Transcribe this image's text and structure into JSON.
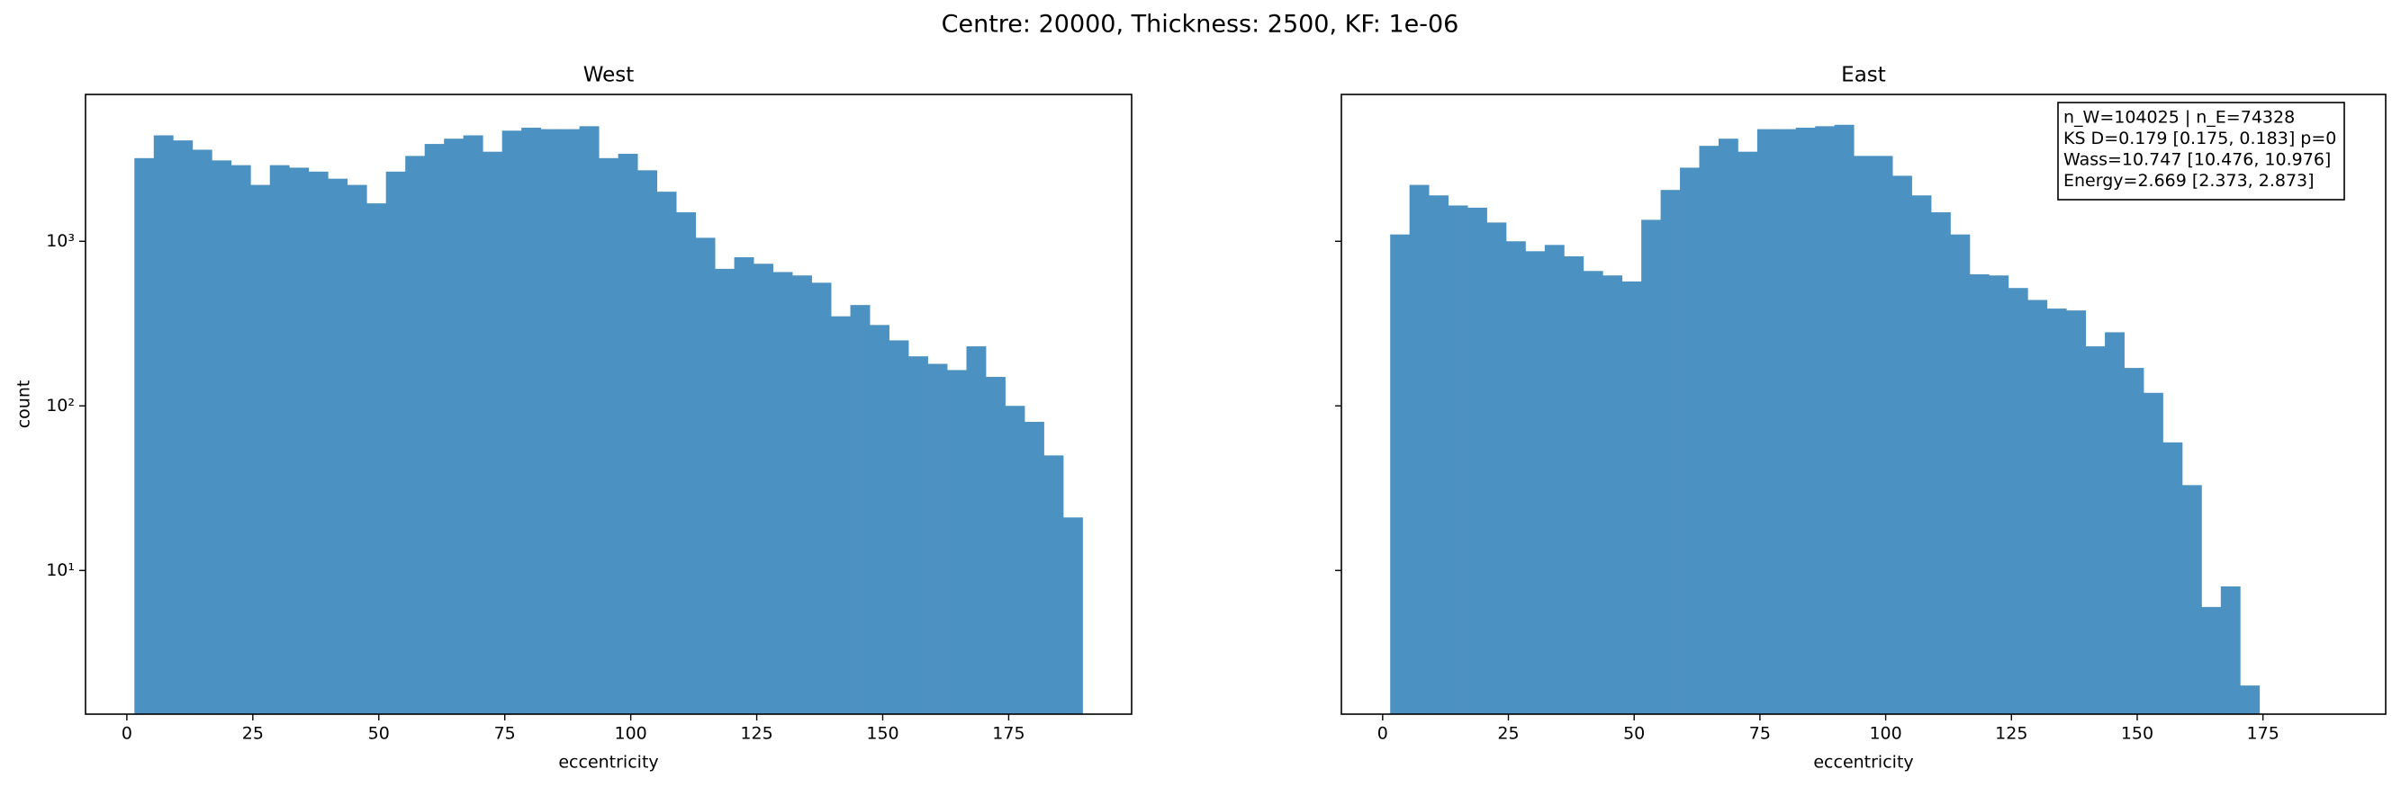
{
  "title": "Centre: 20000, Thickness: 2500, KF: 1e-06",
  "chart_data": [
    {
      "type": "histogram",
      "title": "West",
      "xlabel": "eccentricity",
      "ylabel": "count",
      "color": "#4b91c2",
      "bins": [
        1.5,
        5.34,
        9.18,
        13.02,
        16.86,
        20.7,
        24.54,
        28.38,
        32.22,
        36.06,
        39.9,
        43.74,
        47.58,
        51.42,
        55.26,
        59.1,
        62.94,
        66.78,
        70.62,
        74.46,
        78.3,
        82.14,
        85.98,
        89.82,
        93.66,
        97.5,
        101.34,
        105.18,
        109.02,
        112.86,
        116.7,
        120.54,
        124.38,
        128.22,
        132.06,
        135.9,
        139.74,
        143.58,
        147.42,
        151.26,
        155.1,
        158.94,
        162.78,
        166.62,
        170.46,
        174.3,
        178.14,
        181.98,
        185.82,
        189.66
      ],
      "values": [
        3200,
        4400,
        4100,
        3600,
        3100,
        2900,
        2200,
        2900,
        2800,
        2650,
        2400,
        2200,
        1700,
        2650,
        3300,
        3900,
        4200,
        4400,
        3500,
        4700,
        4900,
        4800,
        4800,
        5000,
        3200,
        3400,
        2700,
        2000,
        1500,
        1050,
        680,
        800,
        730,
        650,
        620,
        560,
        350,
        410,
        310,
        250,
        200,
        180,
        165,
        230,
        150,
        100,
        80,
        50,
        21
      ],
      "xlim": [
        -8.2,
        199.4
      ],
      "xticks": [
        0,
        25,
        50,
        75,
        100,
        125,
        150,
        175
      ],
      "ylim": [
        1.34,
        7800
      ],
      "log_y": true,
      "show_ytick_labels": true,
      "yticks": [
        {
          "value": 10,
          "label": "10¹"
        },
        {
          "value": 100,
          "label": "10²"
        },
        {
          "value": 1000,
          "label": "10³"
        }
      ]
    },
    {
      "type": "histogram",
      "title": "East",
      "xlabel": "eccentricity",
      "color": "#4b91c2",
      "bins": [
        1.5,
        5.34,
        9.18,
        13.02,
        16.86,
        20.7,
        24.54,
        28.38,
        32.22,
        36.06,
        39.9,
        43.74,
        47.58,
        51.42,
        55.26,
        59.1,
        62.94,
        66.78,
        70.62,
        74.46,
        78.3,
        82.14,
        85.98,
        89.82,
        93.66,
        97.5,
        101.34,
        105.18,
        109.02,
        112.86,
        116.7,
        120.54,
        124.38,
        128.22,
        132.06,
        135.9,
        139.74,
        143.58,
        147.42,
        151.26,
        155.1,
        158.94,
        162.78,
        166.62,
        170.46,
        174.3
      ],
      "values": [
        1100,
        2200,
        1900,
        1650,
        1600,
        1300,
        1000,
        870,
        950,
        810,
        660,
        620,
        570,
        1350,
        2050,
        2800,
        3800,
        4200,
        3500,
        4800,
        4800,
        4900,
        5000,
        5100,
        3300,
        3300,
        2500,
        1900,
        1500,
        1100,
        630,
        620,
        520,
        440,
        390,
        380,
        230,
        280,
        170,
        120,
        60,
        33,
        6,
        8,
        2
      ],
      "xlim": [
        -8.2,
        199.4
      ],
      "xticks": [
        0,
        25,
        50,
        75,
        100,
        125,
        150,
        175
      ],
      "ylim": [
        1.34,
        7800
      ],
      "log_y": true,
      "show_ytick_labels": false,
      "yticks": [
        {
          "value": 10,
          "label": "10¹"
        },
        {
          "value": 100,
          "label": "10²"
        },
        {
          "value": 1000,
          "label": "10³"
        }
      ],
      "annotation": [
        "n_W=104025 | n_E=74328",
        "KS D=0.179 [0.175, 0.183]  p=0",
        "Wass=10.747 [10.476, 10.976]",
        "Energy=2.669 [2.373, 2.873]"
      ]
    }
  ]
}
